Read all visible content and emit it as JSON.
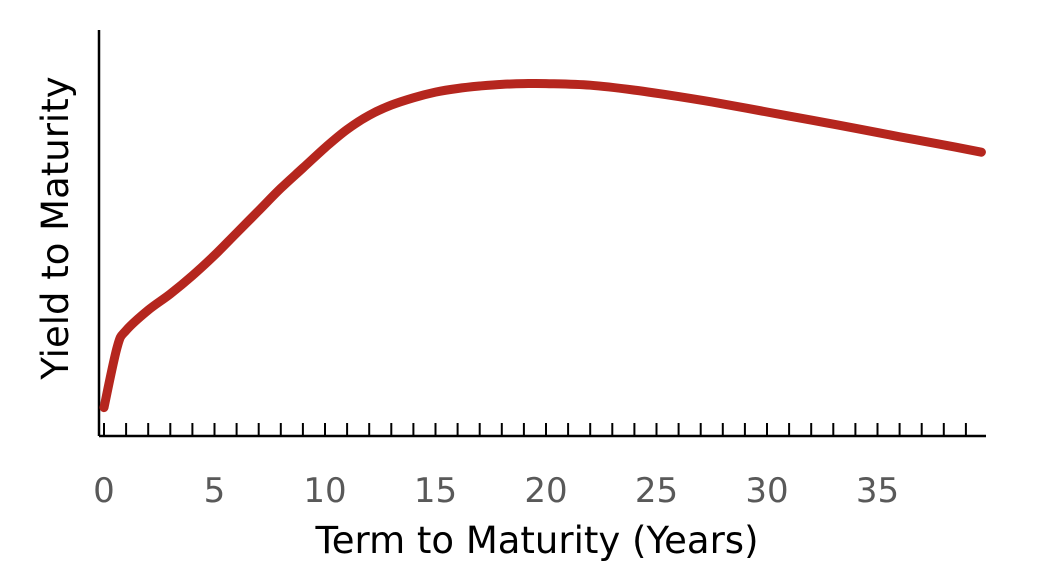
{
  "chart_data": {
    "type": "line",
    "title": "",
    "xlabel": "Term to Maturity (Years)",
    "ylabel": "Yield to Maturity",
    "xlim": [
      0,
      40
    ],
    "ylim": [
      0,
      100
    ],
    "x_ticks_labeled": [
      "0",
      "5",
      "10",
      "15",
      "20",
      "25",
      "30",
      "35"
    ],
    "x_tick_values": [
      0,
      5,
      10,
      15,
      20,
      25,
      30,
      35
    ],
    "minor_tick_step": 1,
    "y_ticks_labeled": false,
    "grid": false,
    "legend": "none",
    "series": [
      {
        "color": "#b5261e",
        "x": [
          0,
          0.6,
          1,
          2,
          3,
          4,
          5,
          6,
          7,
          8,
          9,
          10,
          11,
          12,
          13,
          14,
          15,
          16,
          17,
          18,
          19,
          20,
          22,
          24,
          26,
          28,
          30,
          32,
          34,
          36,
          38,
          39.7
        ],
        "y": [
          7,
          22,
          26,
          31,
          35,
          39.5,
          44.5,
          50,
          55.5,
          61,
          66,
          71,
          75.5,
          79,
          81.5,
          83.3,
          84.7,
          85.6,
          86.2,
          86.6,
          86.8,
          86.8,
          86.4,
          85.2,
          83.6,
          81.8,
          79.8,
          77.8,
          75.8,
          73.7,
          71.7,
          69.9
        ]
      }
    ]
  }
}
